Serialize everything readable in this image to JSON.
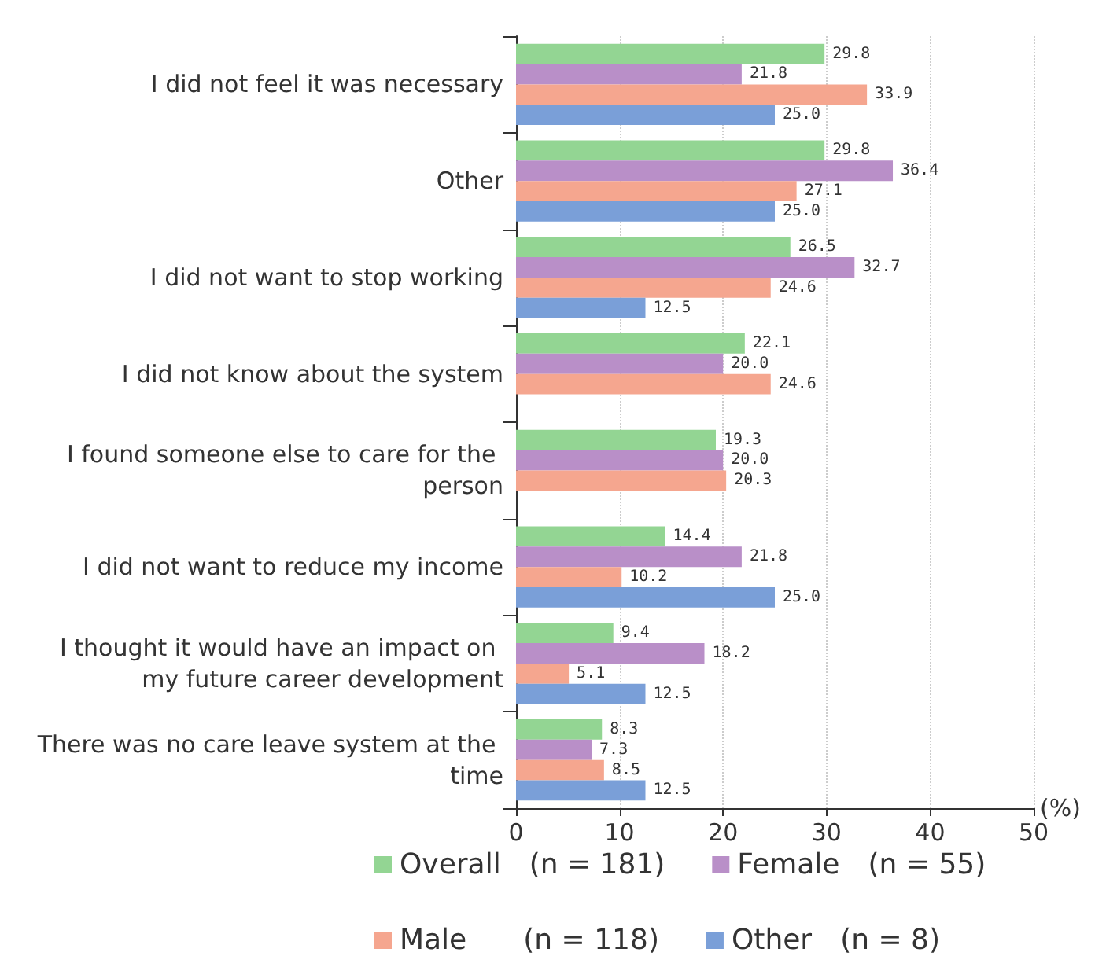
{
  "chart_data": {
    "type": "bar",
    "orientation": "horizontal",
    "xlabel": "(%)",
    "categories": [
      "I did not feel it was necessary",
      "Other",
      "I did not want to stop working",
      "I did not know about the system",
      "I found someone else to care for the person",
      "I did not want to reduce my income",
      "I thought it would have an impact on my future career development",
      "There was no care leave system at the time"
    ],
    "series": [
      {
        "name": "Overall　(n = 181)",
        "color": "#93d593",
        "values": [
          29.8,
          29.8,
          26.5,
          22.1,
          19.3,
          14.4,
          9.4,
          8.3
        ],
        "value_labels": [
          "29.8",
          "29.8",
          "26.5",
          "22.1",
          "19.3",
          "14.4",
          "9.4",
          "8.3"
        ]
      },
      {
        "name": "Female　(n = 55)",
        "color": "#b98fc8",
        "values": [
          21.8,
          36.4,
          32.7,
          20.0,
          20.0,
          21.8,
          18.2,
          7.3
        ],
        "value_labels": [
          "21.8",
          "36.4",
          "32.7",
          "20.0",
          "20.0",
          "21.8",
          "18.2",
          "7.3"
        ]
      },
      {
        "name": "Male　　(n = 118)",
        "color": "#f5a68f",
        "values": [
          33.9,
          27.1,
          24.6,
          24.6,
          20.3,
          10.2,
          5.1,
          8.5
        ],
        "value_labels": [
          "33.9",
          "27.1",
          "24.6",
          "24.6",
          "20.3",
          "10.2",
          "5.1",
          "8.5"
        ]
      },
      {
        "name": "Other　(n = 8)",
        "color": "#7a9fd8",
        "values": [
          25.0,
          25.0,
          12.5,
          null,
          null,
          25.0,
          12.5,
          12.5
        ],
        "value_labels": [
          "25.0",
          "25.0",
          "12.5",
          null,
          null,
          "25.0",
          "12.5",
          "12.5"
        ]
      }
    ],
    "xlim": [
      0,
      50
    ],
    "xticks": [
      0,
      10,
      20,
      30,
      40,
      50
    ],
    "grid": "x",
    "legend": "bottom"
  }
}
